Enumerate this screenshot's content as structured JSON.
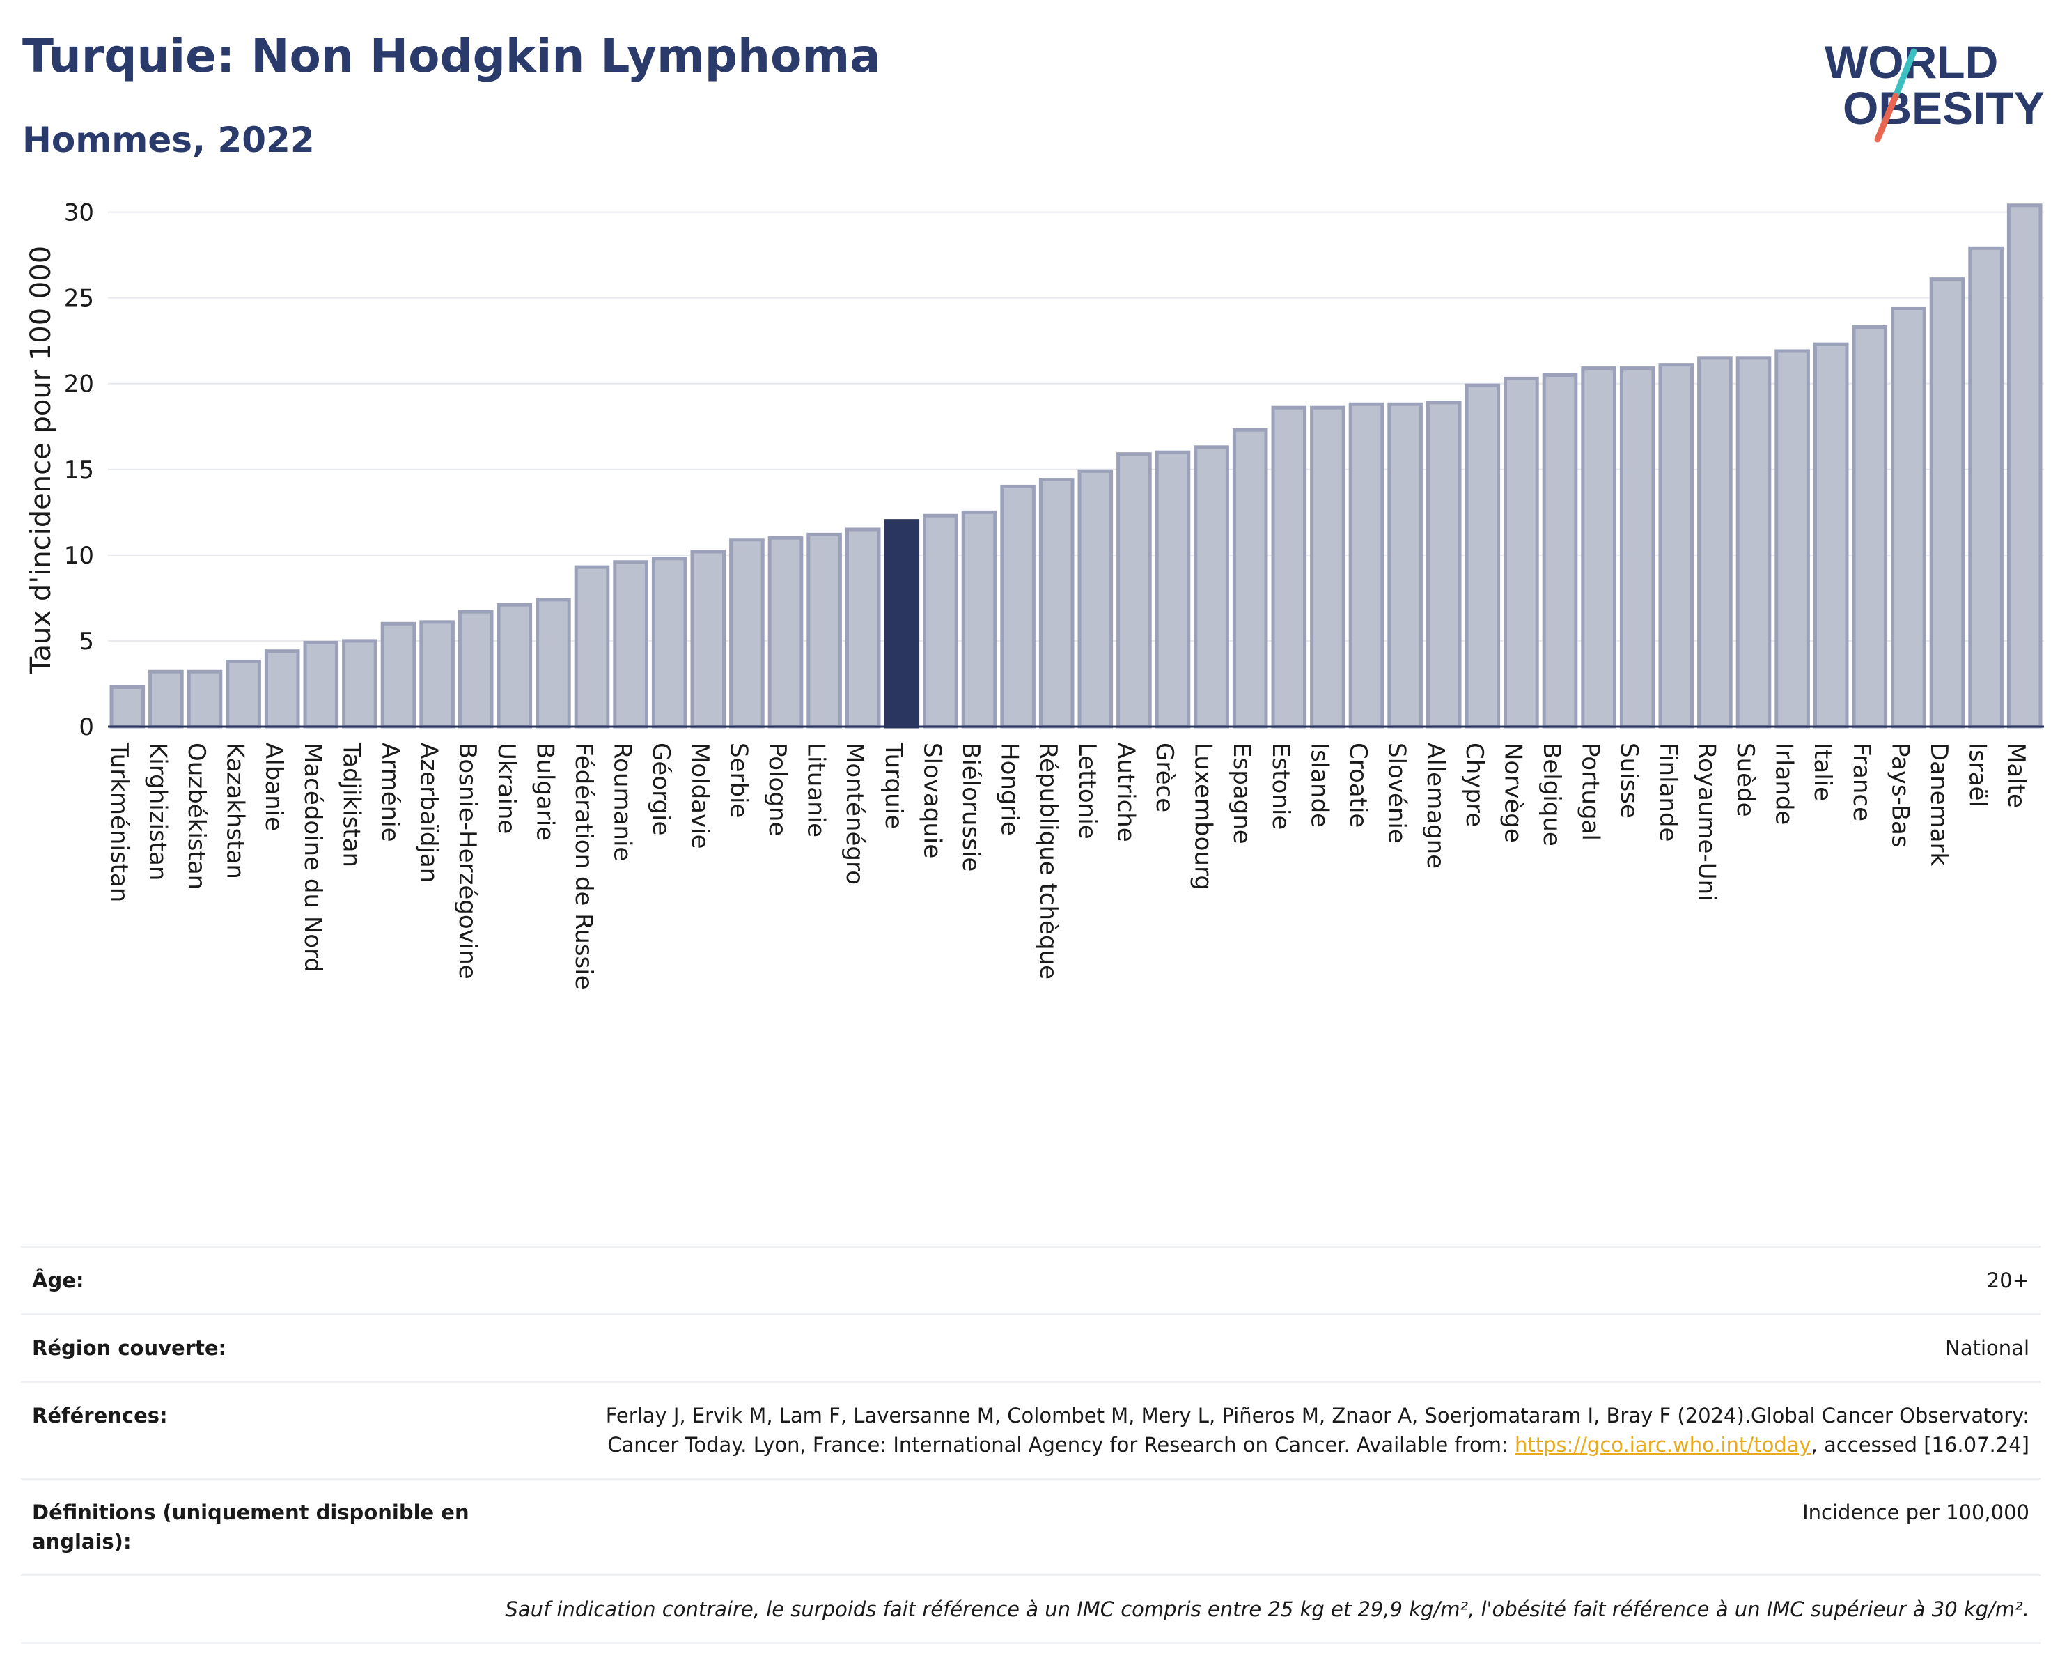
{
  "header": {
    "title": "Turquie: Non Hodgkin Lymphoma",
    "subtitle": "Hommes, 2022",
    "logo_line1": "WORLD",
    "logo_line2": "OBESITY"
  },
  "colors": {
    "title": "#2a3a6b",
    "bar": "#bcc1d0",
    "bar_stroke": "#9aa1b8",
    "highlight": "#2a3660",
    "grid": "#e6e8ee",
    "axis": "#2a3660",
    "logo_teal": "#3bbfbf",
    "logo_red": "#e8664f",
    "link": "#e8a91d"
  },
  "chart_data": {
    "type": "bar",
    "ylabel": "Taux d'incidence pour 100 000",
    "ylim": [
      0,
      31
    ],
    "yticks": [
      0,
      5,
      10,
      15,
      20,
      25,
      30
    ],
    "grid": true,
    "highlight_category": "Turquie",
    "categories": [
      "Turkménistan",
      "Kirghizistan",
      "Ouzbékistan",
      "Kazakhstan",
      "Albanie",
      "Macédoine du Nord",
      "Tadjikistan",
      "Arménie",
      "Azerbaïdjan",
      "Bosnie-Herzégovine",
      "Ukraine",
      "Bulgarie",
      "Fédération de Russie",
      "Roumanie",
      "Géorgie",
      "Moldavie",
      "Serbie",
      "Pologne",
      "Lituanie",
      "Monténégro",
      "Turquie",
      "Slovaquie",
      "Biélorussie",
      "Hongrie",
      "République tchèque",
      "Lettonie",
      "Autriche",
      "Grèce",
      "Luxembourg",
      "Espagne",
      "Estonie",
      "Islande",
      "Croatie",
      "Slovénie",
      "Allemagne",
      "Chypre",
      "Norvège",
      "Belgique",
      "Portugal",
      "Suisse",
      "Finlande",
      "Royaume-Uni",
      "Suède",
      "Irlande",
      "Italie",
      "France",
      "Pays-Bas",
      "Danemark",
      "Israël",
      "Malte"
    ],
    "values": [
      2.3,
      3.2,
      3.2,
      3.8,
      4.4,
      4.9,
      5.0,
      6.0,
      6.1,
      6.7,
      7.1,
      7.4,
      9.3,
      9.6,
      9.8,
      10.2,
      10.9,
      11.0,
      11.2,
      11.5,
      12.0,
      12.3,
      12.5,
      14.0,
      14.4,
      14.9,
      15.9,
      16.0,
      16.3,
      17.3,
      18.6,
      18.6,
      18.8,
      18.8,
      18.9,
      19.9,
      20.3,
      20.5,
      20.9,
      20.9,
      21.1,
      21.5,
      21.5,
      21.9,
      22.3,
      23.3,
      24.4,
      26.1,
      27.9,
      30.4
    ]
  },
  "meta": {
    "age_label": "Âge:",
    "age_value": "20+",
    "region_label": "Région couverte:",
    "region_value": "National",
    "references_label": "Références:",
    "references_text": "Ferlay J, Ervik M, Lam F, Laversanne M, Colombet M, Mery L, Piñeros M, Znaor A, Soerjomataram I, Bray F (2024).Global Cancer Observatory: Cancer Today. Lyon, France: International Agency for Research on Cancer. Available from: ",
    "references_link": "https://gco.iarc.who.int/today",
    "references_suffix": ", accessed [16.07.24]",
    "definitions_label": "Définitions (uniquement disponible en anglais):",
    "definitions_value": "Incidence per 100,000",
    "note": "Sauf indication contraire, le surpoids fait référence à un IMC compris entre 25 kg et 29,9 kg/m², l'obésité fait référence à un IMC supérieur à 30 kg/m²."
  }
}
